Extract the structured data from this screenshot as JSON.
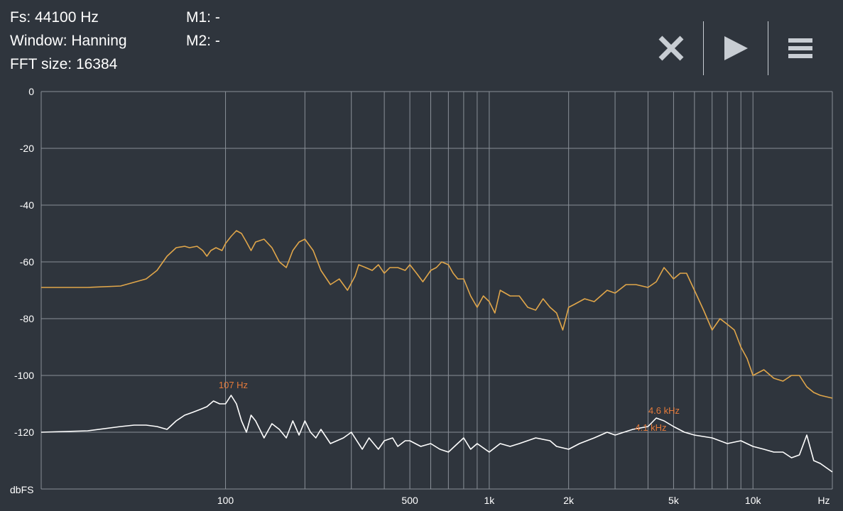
{
  "info": {
    "fs": "Fs: 44100 Hz",
    "window": "Window: Hanning",
    "fft_size": "FFT size: 16384",
    "m1": "M1: -",
    "m2": "M2: -"
  },
  "toolbar": {
    "icons": [
      "close-icon",
      "play-icon",
      "menu-icon"
    ]
  },
  "colors": {
    "background": "#2f353d",
    "grid": "#8a9098",
    "series_orange": "#e0a64a",
    "series_white": "#ffffff",
    "annotation": "#e57a3a",
    "text": "#ffffff"
  },
  "chart_data": {
    "type": "line",
    "xscale": "log",
    "xlim": [
      20,
      20000
    ],
    "ylim": [
      -140,
      0
    ],
    "ylabel": "dbFS",
    "xunit_label": "Hz",
    "grid": true,
    "y_ticks": [
      0,
      -20,
      -40,
      -60,
      -80,
      -100,
      -120
    ],
    "y_tick_labels": [
      "0",
      "-20",
      "-40",
      "-60",
      "-80",
      "-100",
      "-120"
    ],
    "x_ticks": [
      100,
      500,
      1000,
      2000,
      5000,
      10000
    ],
    "x_tick_labels": [
      "100",
      "500",
      "1k",
      "2k",
      "5k",
      "10k"
    ],
    "annotations": [
      {
        "label": "107 Hz",
        "x": 107,
        "y": -107
      },
      {
        "label": "4.6  kHz",
        "x": 4600,
        "y": -116
      },
      {
        "label": "4.1  kHz",
        "x": 4100,
        "y": -122
      }
    ],
    "series": [
      {
        "color": "#e0a64a",
        "x": [
          20,
          30,
          40,
          50,
          55,
          60,
          65,
          70,
          73,
          78,
          82,
          85,
          88,
          92,
          97,
          100,
          105,
          110,
          115,
          120,
          125,
          130,
          140,
          150,
          160,
          170,
          180,
          190,
          200,
          215,
          230,
          250,
          270,
          290,
          310,
          320,
          340,
          360,
          380,
          400,
          420,
          450,
          480,
          500,
          530,
          560,
          600,
          630,
          660,
          700,
          730,
          760,
          800,
          850,
          900,
          950,
          1000,
          1050,
          1100,
          1200,
          1300,
          1400,
          1500,
          1600,
          1700,
          1800,
          1900,
          2000,
          2100,
          2300,
          2500,
          2800,
          3000,
          3300,
          3600,
          4000,
          4300,
          4600,
          4800,
          5000,
          5300,
          5600,
          6000,
          6500,
          7000,
          7500,
          8000,
          8500,
          9000,
          9500,
          10000,
          11000,
          12000,
          13000,
          14000,
          15000,
          16000,
          17000,
          18000,
          20000
        ],
        "y": [
          -69,
          -69,
          -68.5,
          -66,
          -63,
          -58,
          -55,
          -54.5,
          -55,
          -54.5,
          -56,
          -58,
          -56,
          -55,
          -56,
          -53.5,
          -51,
          -49,
          -50,
          -53,
          -56,
          -53,
          -52,
          -55,
          -60,
          -62,
          -56,
          -53,
          -52,
          -56,
          -63,
          -68,
          -66,
          -70,
          -65,
          -61,
          -62,
          -63,
          -61,
          -64,
          -62,
          -62,
          -63,
          -61,
          -64,
          -67,
          -63,
          -62,
          -60,
          -61,
          -64,
          -66,
          -66,
          -72,
          -76,
          -72,
          -74,
          -78,
          -70,
          -72,
          -72,
          -76,
          -77,
          -73,
          -76,
          -78,
          -84,
          -76,
          -75,
          -73,
          -74,
          -70,
          -71,
          -68,
          -68,
          -69,
          -67,
          -62,
          -64,
          -66,
          -64,
          -64,
          -70,
          -77,
          -84,
          -80,
          -82,
          -84,
          -90,
          -94,
          -100,
          -98,
          -101,
          -102,
          -100,
          -100,
          -104,
          -106,
          -107,
          -108
        ]
      },
      {
        "color": "#ffffff",
        "x": [
          20,
          30,
          40,
          45,
          50,
          55,
          60,
          65,
          70,
          75,
          80,
          85,
          90,
          95,
          100,
          105,
          110,
          115,
          120,
          125,
          130,
          140,
          150,
          160,
          170,
          180,
          190,
          200,
          210,
          220,
          230,
          250,
          280,
          300,
          330,
          350,
          380,
          400,
          430,
          450,
          480,
          500,
          550,
          600,
          650,
          700,
          800,
          850,
          900,
          1000,
          1100,
          1200,
          1300,
          1500,
          1700,
          1800,
          2000,
          2200,
          2500,
          2800,
          3000,
          3500,
          4000,
          4300,
          4600,
          5000,
          5500,
          6000,
          7000,
          8000,
          9000,
          10000,
          11000,
          12000,
          13000,
          14000,
          15000,
          16000,
          17000,
          18000,
          20000
        ],
        "y": [
          -120,
          -119.5,
          -118,
          -117.5,
          -117.5,
          -118,
          -119,
          -116,
          -114,
          -113,
          -112,
          -111,
          -109,
          -110,
          -110,
          -107,
          -110,
          -116,
          -120,
          -114,
          -116,
          -122,
          -117,
          -119,
          -122,
          -116,
          -121,
          -116,
          -120,
          -122,
          -119,
          -124,
          -122,
          -120,
          -126,
          -122,
          -126,
          -123,
          -122,
          -125,
          -123,
          -123,
          -125,
          -124,
          -126,
          -127,
          -122,
          -126,
          -124,
          -127,
          -124,
          -125,
          -124,
          -122,
          -123,
          -125,
          -126,
          -124,
          -122,
          -120,
          -121,
          -119,
          -118,
          -115,
          -116,
          -118,
          -120,
          -121,
          -122,
          -124,
          -123,
          -125,
          -126,
          -127,
          -127,
          -129,
          -128,
          -121,
          -130,
          -131,
          -134
        ]
      }
    ]
  }
}
